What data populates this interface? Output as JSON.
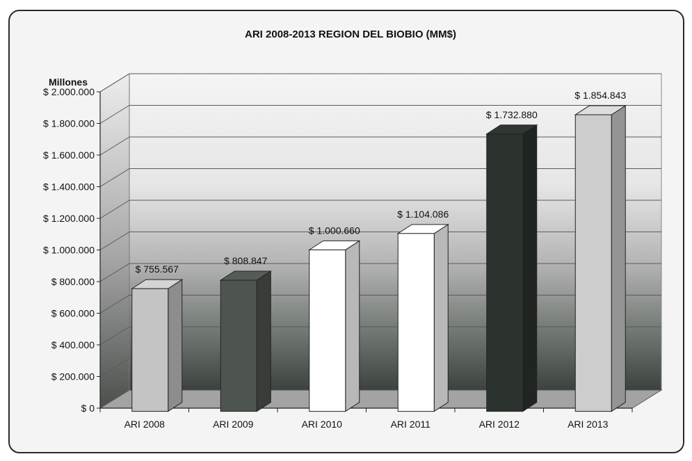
{
  "chart_data": {
    "type": "bar",
    "title": "ARI 2008-2013 REGION DEL BIOBIO (MM$)",
    "unit_label": "Millones",
    "categories": [
      "ARI 2008",
      "ARI 2009",
      "ARI 2010",
      "ARI 2011",
      "ARI 2012",
      "ARI 2013"
    ],
    "values": [
      755567,
      808847,
      1000660,
      1104086,
      1732880,
      1854843
    ],
    "value_labels": [
      "$ 755.567",
      "$ 808.847",
      "$ 1.000.660",
      "$ 1.104.086",
      "$ 1.732.880",
      "$ 1.854.843"
    ],
    "bar_colors": [
      "#c4c4c4",
      "#4e554f",
      "#ffffff",
      "#ffffff",
      "#2c332e",
      "#cdcdcd"
    ],
    "y_ticks": [
      {
        "value": 0,
        "label": "$ 0"
      },
      {
        "value": 200000,
        "label": "$ 200.000"
      },
      {
        "value": 400000,
        "label": "$ 400.000"
      },
      {
        "value": 600000,
        "label": "$ 600.000"
      },
      {
        "value": 800000,
        "label": "$ 800.000"
      },
      {
        "value": 1000000,
        "label": "$ 1.000.000"
      },
      {
        "value": 1200000,
        "label": "$ 1.200.000"
      },
      {
        "value": 1400000,
        "label": "$ 1.400.000"
      },
      {
        "value": 1600000,
        "label": "$ 1.600.000"
      },
      {
        "value": 1800000,
        "label": "$ 1.800.000"
      },
      {
        "value": 2000000,
        "label": "$ 2.000.000"
      }
    ],
    "ylim": [
      0,
      2000000
    ],
    "grid": true,
    "legend": "none",
    "style": "3d-bar"
  }
}
